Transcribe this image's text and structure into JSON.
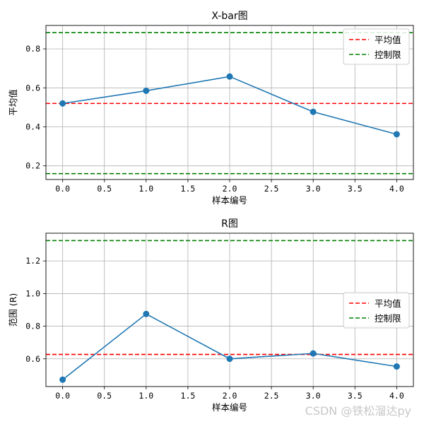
{
  "chart_data": [
    {
      "type": "line",
      "title": "X-bar图",
      "xlabel": "样本编号",
      "ylabel": "平均值",
      "xlim": [
        -0.2,
        4.2
      ],
      "ylim": [
        0.13,
        0.92
      ],
      "xticks": [
        0.0,
        0.5,
        1.0,
        1.5,
        2.0,
        2.5,
        3.0,
        3.5,
        4.0
      ],
      "xtick_labels": [
        "0.0",
        "0.5",
        "1.0",
        "1.5",
        "2.0",
        "2.5",
        "3.0",
        "3.5",
        "4.0"
      ],
      "yticks": [
        0.2,
        0.4,
        0.6,
        0.8
      ],
      "ytick_labels": [
        "0.2",
        "0.4",
        "0.6",
        "0.8"
      ],
      "grid": true,
      "series": [
        {
          "x": [
            0,
            1,
            2,
            3,
            4
          ],
          "values": [
            0.52,
            0.585,
            0.658,
            0.477,
            0.362
          ],
          "color": "#1f77b4",
          "style": "solid",
          "marker": "circle"
        }
      ],
      "hlines": [
        {
          "name": "平均值",
          "y": 0.52,
          "color": "#ff0000",
          "style": "dashed"
        },
        {
          "name": "控制限",
          "y": 0.883,
          "color": "#008000",
          "style": "dashed"
        },
        {
          "name": "控制限",
          "y": 0.16,
          "color": "#008000",
          "style": "dashed"
        }
      ],
      "legend": {
        "position": "top-right",
        "entries": [
          {
            "label": "平均值",
            "color": "#ff0000"
          },
          {
            "label": "控制限",
            "color": "#008000"
          }
        ]
      }
    },
    {
      "type": "line",
      "title": "R图",
      "xlabel": "样本编号",
      "ylabel": "范围 (R)",
      "xlim": [
        -0.2,
        4.2
      ],
      "ylim": [
        0.43,
        1.37
      ],
      "xticks": [
        0.0,
        0.5,
        1.0,
        1.5,
        2.0,
        2.5,
        3.0,
        3.5,
        4.0
      ],
      "xtick_labels": [
        "0.0",
        "0.5",
        "1.0",
        "1.5",
        "2.0",
        "2.5",
        "3.0",
        "3.5",
        "4.0"
      ],
      "yticks": [
        0.6,
        0.8,
        1.0,
        1.2
      ],
      "ytick_labels": [
        "0.6",
        "0.8",
        "1.0",
        "1.2"
      ],
      "grid": true,
      "series": [
        {
          "x": [
            0,
            1,
            2,
            3,
            4
          ],
          "values": [
            0.472,
            0.875,
            0.6,
            0.633,
            0.553
          ],
          "color": "#1f77b4",
          "style": "solid",
          "marker": "circle"
        }
      ],
      "hlines": [
        {
          "name": "平均值",
          "y": 0.627,
          "color": "#ff0000",
          "style": "dashed"
        },
        {
          "name": "控制限",
          "y": 1.325,
          "color": "#008000",
          "style": "dashed"
        }
      ],
      "legend": {
        "position": "right",
        "entries": [
          {
            "label": "平均值",
            "color": "#ff0000"
          },
          {
            "label": "控制限",
            "color": "#008000"
          }
        ]
      }
    }
  ],
  "watermark": "CSDN @铁松溜达py"
}
